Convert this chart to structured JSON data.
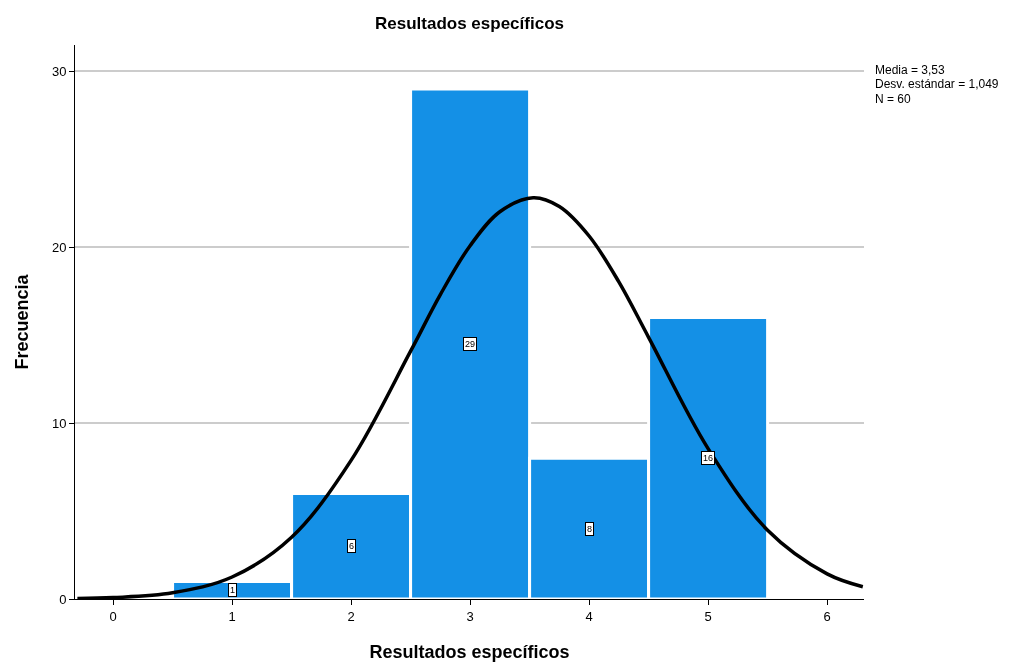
{
  "chart_data": {
    "type": "histogram",
    "title": "Resultados específicos",
    "xlabel": "Resultados específicos",
    "ylabel": "Frecuencia",
    "annotations": [
      "Media = 3,53",
      "Desv. estándar = 1,049",
      "N = 60"
    ],
    "bins": [
      0.5,
      1.5,
      2.5,
      3.5,
      4.5,
      5.5
    ],
    "series": [
      {
        "color": "#1490e6",
        "values": [
          1,
          6,
          29,
          8,
          16
        ],
        "value_labels": [
          "1",
          "6",
          "29",
          "8",
          "16"
        ]
      },
      {
        "type": "line",
        "color": "#000000",
        "x": [
          -0.3,
          0,
          0.5,
          1,
          1.5,
          2,
          2.5,
          2.75,
          3,
          3.25,
          3.53,
          3.75,
          4,
          4.25,
          4.5,
          5,
          5.5,
          6,
          6.3
        ],
        "values": [
          0.03,
          0.08,
          0.35,
          1.25,
          3.51,
          7.88,
          14.09,
          17.31,
          20.09,
          22.02,
          22.82,
          22.32,
          20.64,
          18.03,
          14.88,
          8.55,
          3.91,
          1.43,
          0.7
        ]
      }
    ],
    "xlim": [
      -0.32,
      6.31
    ],
    "ylim": [
      0,
      31.5
    ],
    "xticks": [
      0,
      1,
      2,
      3,
      4,
      5,
      6
    ],
    "yticks": [
      0,
      10,
      20,
      30
    ],
    "grid": "y",
    "marker": "none",
    "line_style": "solid"
  }
}
